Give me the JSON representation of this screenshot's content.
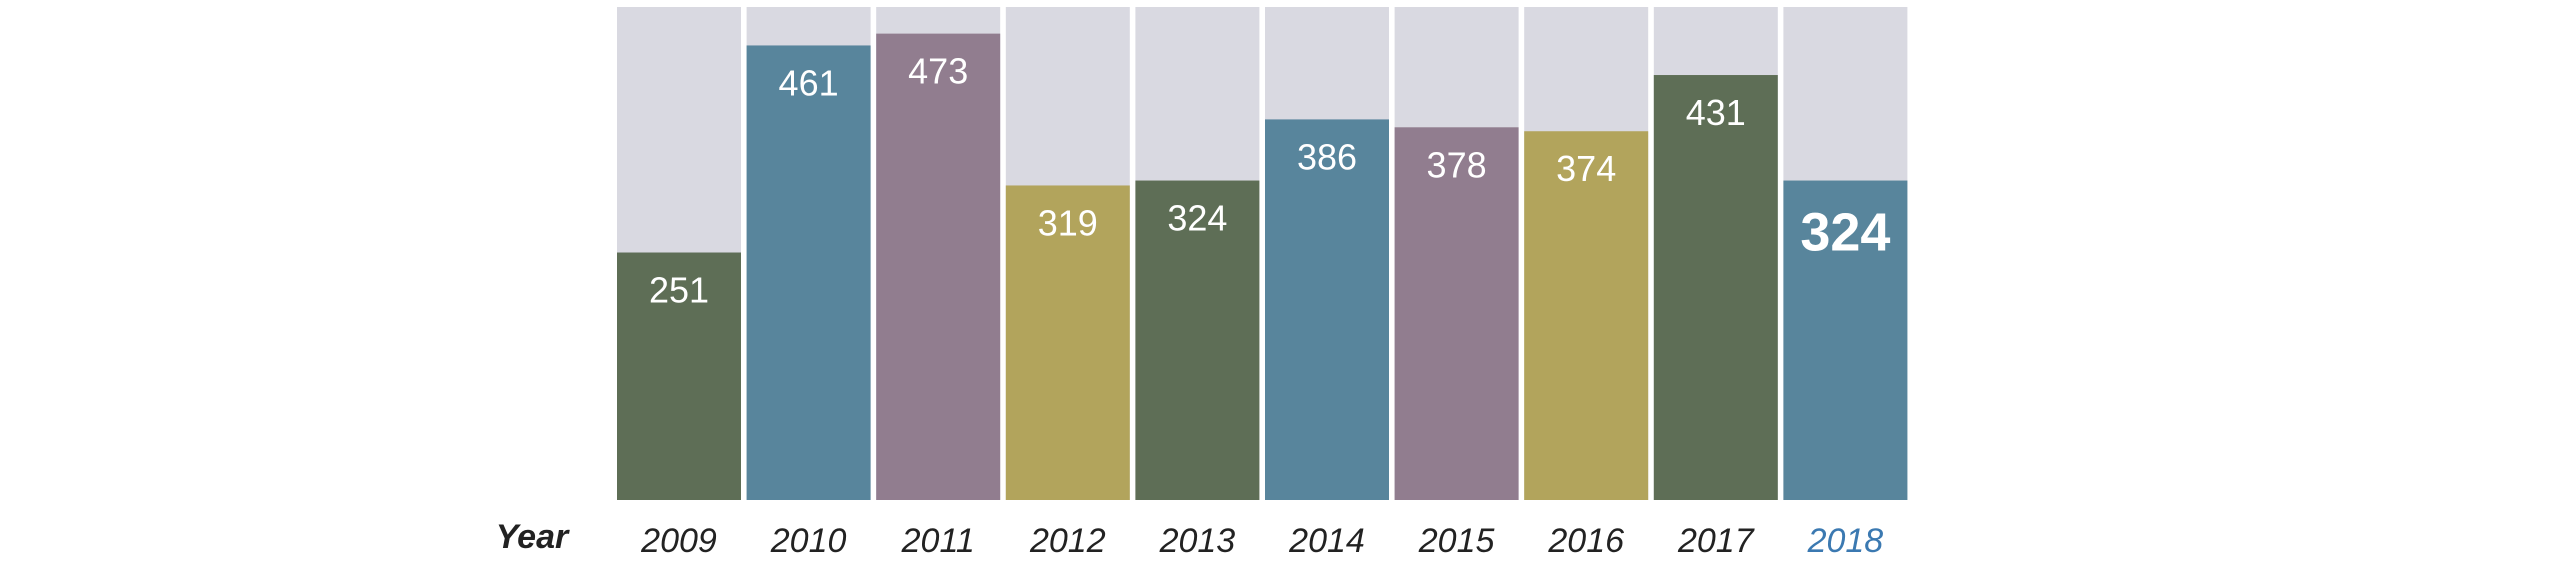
{
  "chart_data": {
    "type": "bar",
    "title": "",
    "xlabel": "Year",
    "ylabel": "",
    "ylim": [
      0,
      500
    ],
    "grid": false,
    "legend": "none",
    "categories": [
      "2009",
      "2010",
      "2011",
      "2012",
      "2013",
      "2014",
      "2015",
      "2016",
      "2017",
      "2018"
    ],
    "values": [
      251,
      461,
      473,
      319,
      324,
      386,
      378,
      374,
      431,
      324
    ],
    "value_labels": [
      "251",
      "461",
      "473",
      "319",
      "324",
      "386",
      "378",
      "374",
      "431",
      "324"
    ],
    "highlighted_category": "2018",
    "bar_colors": [
      "#5e6e56",
      "#58859c",
      "#917d8f",
      "#b2a45c",
      "#5e6e56",
      "#58859c",
      "#917d8f",
      "#b2a45c",
      "#5e6e56",
      "#58859c"
    ],
    "background_bar_color": "#d9d9e1",
    "label_color": "#ffffff",
    "tick_color": "#222222",
    "highlight_tick_color": "#3b79b1"
  }
}
